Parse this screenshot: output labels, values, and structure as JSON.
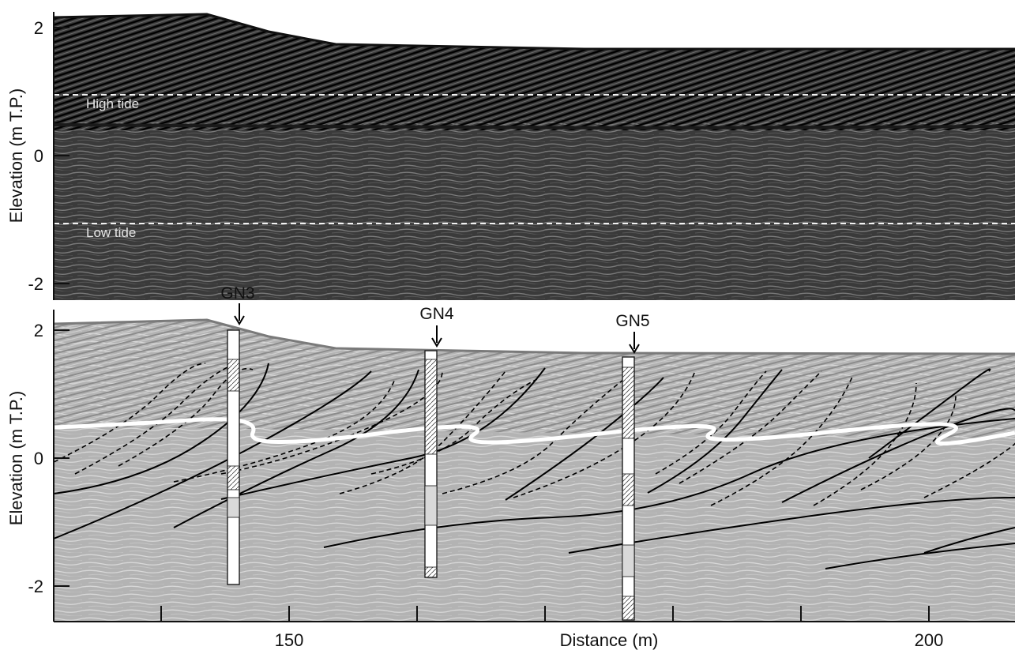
{
  "top_panel": {
    "ylabel": "Elevation (m T.P.)",
    "yticks": [
      "2",
      "0",
      "-2"
    ],
    "high_tide_label": "High tide",
    "low_tide_label": "Low tide"
  },
  "bottom_panel": {
    "ylabel": "Elevation (m T.P.)",
    "yticks": [
      "2",
      "0",
      "-2"
    ],
    "cores": [
      "GN3",
      "GN4",
      "GN5"
    ]
  },
  "xaxis": {
    "label": "Distance (m)",
    "ticks": [
      "150",
      "200"
    ]
  },
  "colors": {
    "top_background": "#3a3a3a",
    "top_surface": "#222222",
    "bottom_background": "#b3b3b3",
    "bottom_surface": "#9a9a9a",
    "tide_line": "#ffffff",
    "boundary_line": "#000000"
  }
}
